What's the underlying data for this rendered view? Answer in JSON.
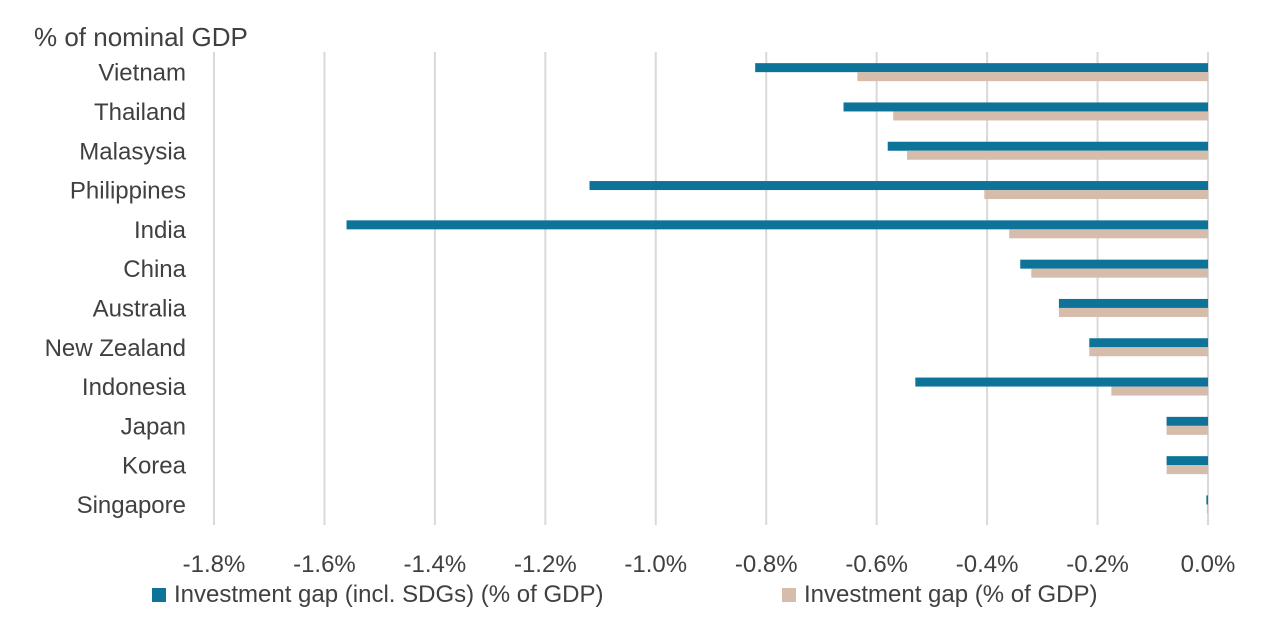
{
  "chart_data": {
    "type": "bar",
    "orientation": "horizontal",
    "unit_label": "% of nominal GDP",
    "categories": [
      "Vietnam",
      "Thailand",
      "Malasysia",
      "Philippines",
      "India",
      "China",
      "Australia",
      "New Zealand",
      "Indonesia",
      "Japan",
      "Korea",
      "Singapore"
    ],
    "series": [
      {
        "name": "Investment gap (incl. SDGs) (% of GDP)",
        "color": "#0e7399",
        "values": [
          -0.82,
          -0.66,
          -0.58,
          -1.12,
          -1.56,
          -0.34,
          -0.27,
          -0.215,
          -0.53,
          -0.075,
          -0.075,
          -0.003
        ]
      },
      {
        "name": "Investment gap (% of GDP)",
        "color": "#d5bcab",
        "values": [
          -0.635,
          -0.57,
          -0.545,
          -0.405,
          -0.36,
          -0.32,
          -0.27,
          -0.215,
          -0.175,
          -0.075,
          -0.075,
          -0.002
        ]
      }
    ],
    "xlim": [
      -1.8,
      0.0
    ],
    "xticks": [
      -1.8,
      -1.6,
      -1.4,
      -1.2,
      -1.0,
      -0.8,
      -0.6,
      -0.4,
      -0.2,
      0.0
    ],
    "xtick_labels": [
      "-1.8%",
      "-1.6%",
      "-1.4%",
      "-1.2%",
      "-1.0%",
      "-0.8%",
      "-0.6%",
      "-0.4%",
      "-0.2%",
      "0.0%"
    ],
    "grid": "vertical",
    "legend_position": "bottom"
  }
}
